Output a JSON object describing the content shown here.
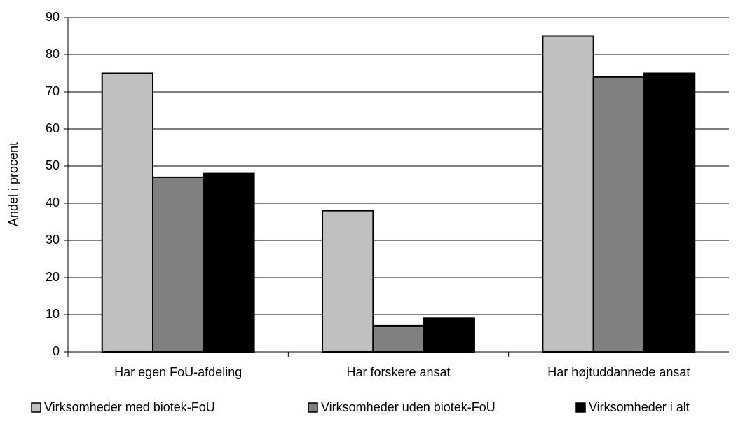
{
  "chart_data": {
    "type": "bar",
    "y_label": "Andel i procent",
    "categories": [
      "Har egen FoU-afdeling",
      "Har forskere ansat",
      "Har højtuddannede ansat"
    ],
    "series": [
      {
        "name": "Virksomheder med biotek-FoU",
        "color": "#c0c0c0",
        "values": [
          75,
          38,
          85
        ]
      },
      {
        "name": "Virksomheder uden biotek-FoU",
        "color": "#808080",
        "values": [
          47,
          7,
          74
        ]
      },
      {
        "name": "Virksomheder i alt",
        "color": "#000000",
        "values": [
          48,
          9,
          75
        ]
      }
    ],
    "ylim": [
      0,
      90
    ],
    "yticks": [
      0,
      10,
      20,
      30,
      40,
      50,
      60,
      70,
      80,
      90
    ],
    "grid": true,
    "legend": "bottom"
  }
}
